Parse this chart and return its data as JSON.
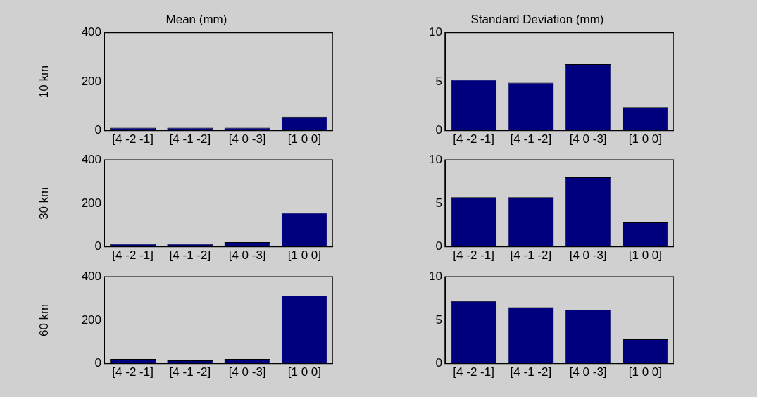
{
  "chart_data": [
    {
      "type": "bar",
      "title": "Mean (mm)",
      "ylabel": "10 km",
      "categories": [
        "[4 -2 -1]",
        "[4 -1 -2]",
        "[4 0 -3]",
        "[1 0 0]"
      ],
      "values": [
        12,
        12,
        12,
        57
      ],
      "color": "#00007f",
      "ylim": [
        0,
        400
      ],
      "yticks": [
        0,
        200,
        400
      ],
      "grid": false
    },
    {
      "type": "bar",
      "title": "Standard Deviation (mm)",
      "categories": [
        "[4 -2 -1]",
        "[4 -1 -2]",
        "[4 0 -3]",
        "[1 0 0]"
      ],
      "values": [
        5.2,
        4.9,
        6.8,
        2.4
      ],
      "color": "#00007f",
      "ylim": [
        0,
        10
      ],
      "yticks": [
        0,
        5,
        10
      ],
      "grid": false
    },
    {
      "type": "bar",
      "ylabel": "30 km",
      "categories": [
        "[4 -2 -1]",
        "[4 -1 -2]",
        "[4 0 -3]",
        "[1 0 0]"
      ],
      "values": [
        13,
        13,
        21,
        157
      ],
      "color": "#00007f",
      "ylim": [
        0,
        400
      ],
      "yticks": [
        0,
        200,
        400
      ],
      "grid": false
    },
    {
      "type": "bar",
      "categories": [
        "[4 -2 -1]",
        "[4 -1 -2]",
        "[4 0 -3]",
        "[1 0 0]"
      ],
      "values": [
        5.7,
        5.7,
        8.0,
        2.8
      ],
      "color": "#00007f",
      "ylim": [
        0,
        10
      ],
      "yticks": [
        0,
        5,
        10
      ],
      "grid": false
    },
    {
      "type": "bar",
      "ylabel": "60 km",
      "categories": [
        "[4 -2 -1]",
        "[4 -1 -2]",
        "[4 0 -3]",
        "[1 0 0]"
      ],
      "values": [
        21,
        15,
        21,
        313
      ],
      "color": "#00007f",
      "ylim": [
        0,
        400
      ],
      "yticks": [
        0,
        200,
        400
      ],
      "grid": false
    },
    {
      "type": "bar",
      "categories": [
        "[4 -2 -1]",
        "[4 -1 -2]",
        "[4 0 -3]",
        "[1 0 0]"
      ],
      "values": [
        7.2,
        6.5,
        6.2,
        2.8
      ],
      "color": "#00007f",
      "ylim": [
        0,
        10
      ],
      "yticks": [
        0,
        5,
        10
      ],
      "grid": false
    }
  ]
}
